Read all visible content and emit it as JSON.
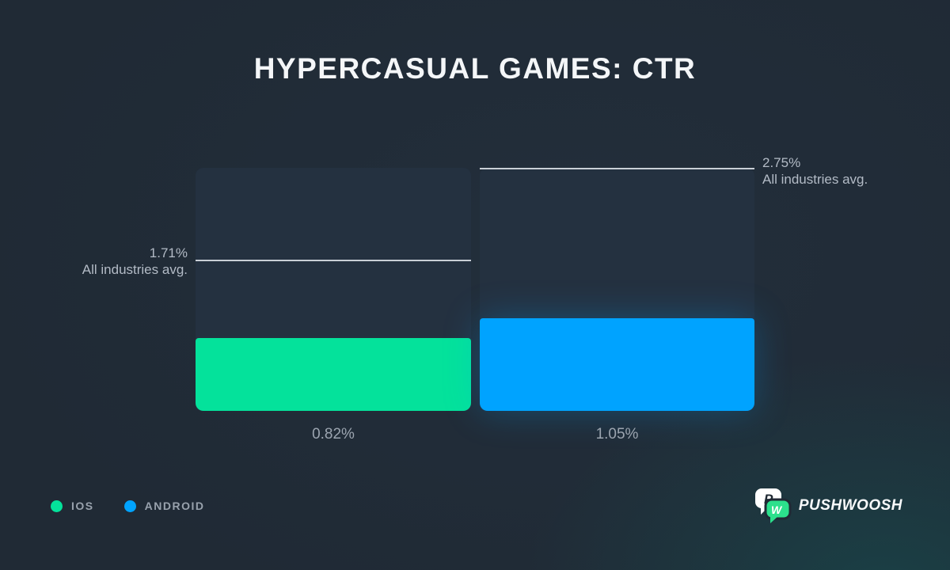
{
  "title": "HYPERCASUAL GAMES: CTR",
  "chart_data": {
    "type": "bar",
    "title": "HYPERCASUAL GAMES: CTR",
    "categories": [
      "iOS",
      "Android"
    ],
    "values": [
      0.82,
      1.05
    ],
    "value_labels": [
      "0.82%",
      "1.05%"
    ],
    "unit": "%",
    "ylim": [
      0,
      2.75
    ],
    "grid": false,
    "colors": [
      "#04E29B",
      "#00A3FF"
    ],
    "track_color": "#243140",
    "benchmark_line_color": "#C9CFD6",
    "benchmarks": [
      {
        "value": 1.71,
        "value_label": "1.71%",
        "caption": "All industries avg.",
        "side": "left"
      },
      {
        "value": 2.75,
        "value_label": "2.75%",
        "caption": "All industries avg.",
        "side": "right"
      }
    ],
    "legend_position": "bottom-left"
  },
  "legend": {
    "items": [
      {
        "label": "IOS",
        "color": "#04E29B"
      },
      {
        "label": "ANDROID",
        "color": "#00A3FF"
      }
    ]
  },
  "branding": {
    "wordmark": "PUSHWOOSH",
    "logo_letters": {
      "back": "P",
      "front": "W"
    },
    "logo_colors": {
      "back_bubble": "#FFFFFF",
      "front_bubble": "#2CE08C",
      "back_letter": "#1F2933",
      "front_letter": "#FFFFFF"
    }
  },
  "theme": {
    "background": "#202A35",
    "title_color": "#F4F6F8",
    "annotation_color": "#B3BBC6",
    "value_label_color": "#9CA5B0",
    "legend_label_color": "#99A2AD"
  }
}
